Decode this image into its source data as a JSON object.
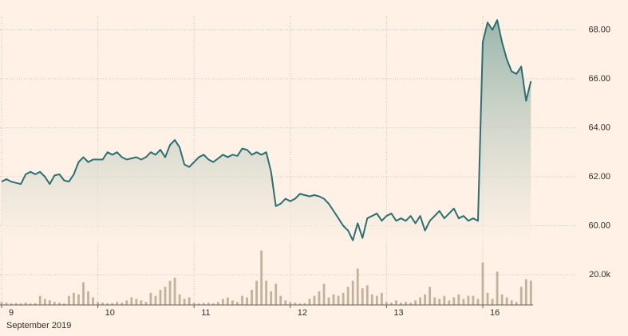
{
  "chart_data": [
    {
      "type": "line",
      "color": "#2b6f73",
      "categories": [
        "9",
        null,
        null,
        null,
        null,
        null,
        null,
        null,
        null,
        null,
        null,
        null,
        null,
        null,
        null,
        null,
        null,
        null,
        null,
        null,
        "10",
        null,
        null,
        null,
        null,
        null,
        null,
        null,
        null,
        null,
        null,
        null,
        null,
        null,
        null,
        null,
        null,
        null,
        null,
        null,
        "11",
        null,
        null,
        null,
        null,
        null,
        null,
        null,
        null,
        null,
        null,
        null,
        null,
        null,
        null,
        null,
        null,
        null,
        null,
        null,
        "12",
        null,
        null,
        null,
        null,
        null,
        null,
        null,
        null,
        null,
        null,
        null,
        null,
        null,
        null,
        null,
        null,
        null,
        null,
        null,
        "13",
        null,
        null,
        null,
        null,
        null,
        null,
        null,
        null,
        null,
        null,
        null,
        null,
        null,
        null,
        null,
        null,
        null,
        null,
        null,
        "16",
        null,
        null,
        null,
        null,
        null,
        null,
        null,
        null,
        null,
        null
      ],
      "x_label": "September 2019",
      "values": [
        61.8,
        61.9,
        61.8,
        61.75,
        61.7,
        62.1,
        62.2,
        62.1,
        62.2,
        62.0,
        61.7,
        62.05,
        62.1,
        61.85,
        61.8,
        62.1,
        62.6,
        62.8,
        62.6,
        62.7,
        62.7,
        62.7,
        63.0,
        62.9,
        63.0,
        62.8,
        62.7,
        62.75,
        62.8,
        62.7,
        62.8,
        63.0,
        62.9,
        63.1,
        62.8,
        63.3,
        63.5,
        63.2,
        62.5,
        62.4,
        62.6,
        62.8,
        62.9,
        62.7,
        62.6,
        62.75,
        62.9,
        62.8,
        62.9,
        62.85,
        63.15,
        63.1,
        62.9,
        63.0,
        62.9,
        63.0,
        62.2,
        60.8,
        60.9,
        61.1,
        61.0,
        61.1,
        61.3,
        61.25,
        61.2,
        61.25,
        61.2,
        61.1,
        60.9,
        60.6,
        60.3,
        60.0,
        59.8,
        59.4,
        60.1,
        59.5,
        60.3,
        60.4,
        60.5,
        60.2,
        60.4,
        60.5,
        60.2,
        60.3,
        60.2,
        60.4,
        60.1,
        60.4,
        59.8,
        60.2,
        60.4,
        60.6,
        60.3,
        60.5,
        60.7,
        60.3,
        60.4,
        60.2,
        60.3,
        60.2,
        67.5,
        68.3,
        68.0,
        68.4,
        67.5,
        66.8,
        66.3,
        66.2,
        66.5,
        65.1,
        65.9
      ],
      "ylim": [
        59.3,
        68.6
      ],
      "yticks": [
        {
          "value": 60,
          "label": "60.00"
        },
        {
          "value": 62,
          "label": "62.00"
        },
        {
          "value": 64,
          "label": "64.00"
        },
        {
          "value": 66,
          "label": "66.00"
        },
        {
          "value": 68,
          "label": "68.00"
        }
      ],
      "grid": true
    },
    {
      "type": "bar",
      "color": "#c2b29c",
      "values": [
        2000,
        1500,
        1000,
        1200,
        1000,
        1500,
        1000,
        1200,
        6000,
        4000,
        3000,
        2000,
        1500,
        1000,
        6000,
        8000,
        7000,
        15000,
        9000,
        5000,
        2000,
        1500,
        1000,
        1200,
        2000,
        1500,
        3000,
        5000,
        4000,
        3000,
        2000,
        8000,
        6000,
        10000,
        12000,
        16000,
        18000,
        7000,
        4000,
        5000,
        1500,
        1000,
        1200,
        1500,
        1000,
        2000,
        4000,
        5000,
        3000,
        2000,
        6000,
        5000,
        10000,
        16000,
        36000,
        16000,
        9000,
        14000,
        6000,
        3000,
        2000,
        1500,
        1000,
        1200,
        4000,
        6000,
        9000,
        14000,
        5000,
        7000,
        6000,
        8000,
        12000,
        16000,
        24000,
        11000,
        13000,
        7000,
        6000,
        8000,
        2000,
        1500,
        3000,
        1500,
        2000,
        1500,
        3000,
        5000,
        7000,
        12000,
        5000,
        4000,
        6000,
        3000,
        5000,
        7000,
        4000,
        6000,
        6000,
        4000,
        28000,
        8000,
        4000,
        22000,
        7000,
        5000,
        3000,
        2000,
        12000,
        17000,
        16000
      ],
      "ylim": [
        0,
        40000
      ],
      "yticks": [
        {
          "value": 20000,
          "label": "20.0k"
        }
      ],
      "grid": true
    }
  ]
}
